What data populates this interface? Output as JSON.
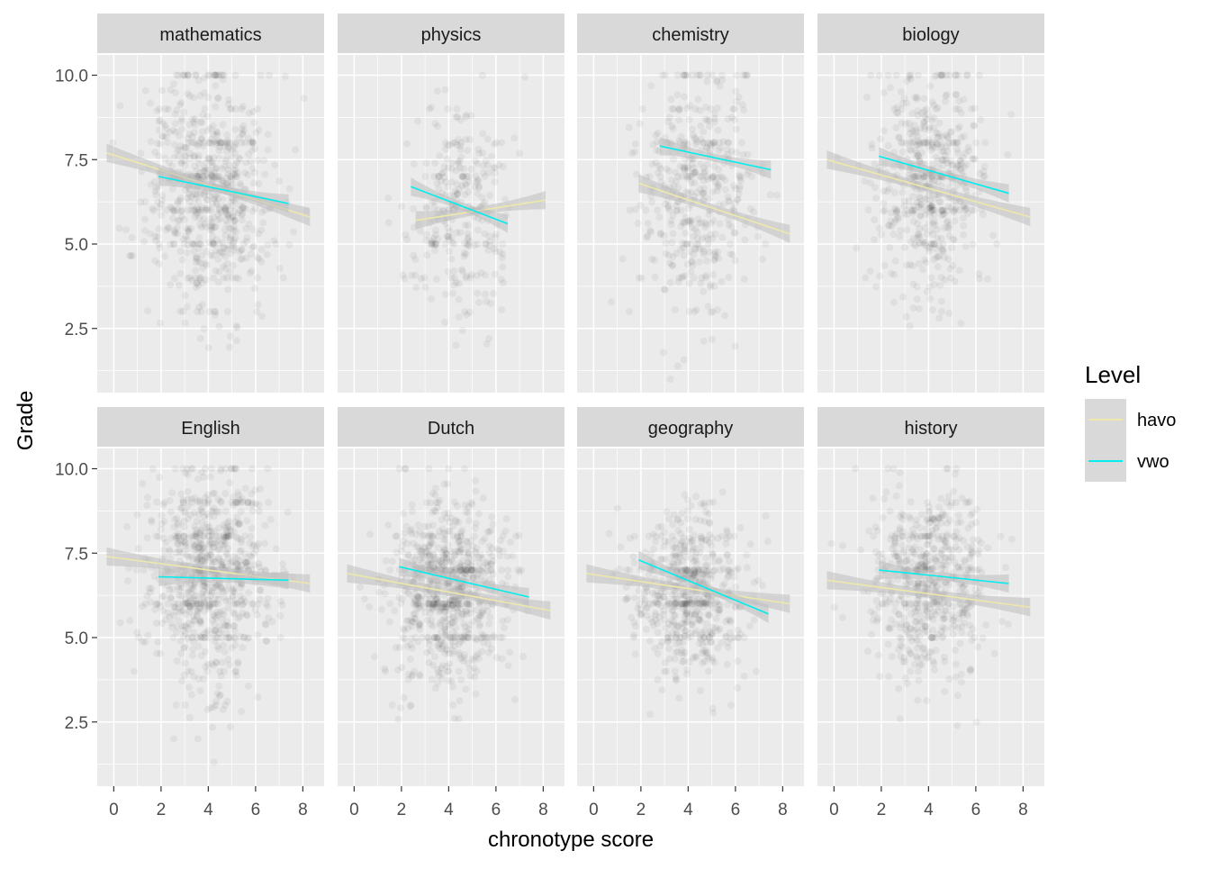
{
  "chart_data": {
    "type": "scatter",
    "facet_layout": "2 rows x 4 columns",
    "xlabel": "chronotype score",
    "ylabel": "Grade",
    "x_ticks": [
      0,
      2,
      4,
      6,
      8
    ],
    "y_ticks": [
      2.5,
      5.0,
      7.5,
      10.0
    ],
    "x_tick_labels": [
      "0",
      "2",
      "4",
      "6",
      "8"
    ],
    "y_tick_labels": [
      "2.5",
      "5.0",
      "7.5",
      "10.0"
    ],
    "xlim": [
      -0.7,
      8.9
    ],
    "ylim": [
      0.6,
      10.6
    ],
    "grid": true,
    "points_alpha": 0.05,
    "legend": {
      "title": "Level",
      "position": "right",
      "entries": [
        {
          "label": "havo",
          "color": "#EEE8AA"
        },
        {
          "label": "vwo",
          "color": "#00EEEE"
        }
      ]
    },
    "colors": {
      "panel_bg": "#EBEBEB",
      "strip_bg": "#D9D9D9",
      "grid": "#FFFFFF",
      "points": "#000000",
      "confidence_band": "#BEBEBE"
    },
    "panels": [
      {
        "subject": "mathematics",
        "scatter_summary": {
          "x_center": 4.0,
          "x_spread": 1.3,
          "y_center": 6.6,
          "y_spread": 1.7,
          "n_points": 700
        },
        "series": [
          {
            "name": "havo",
            "x": [
              -0.3,
              8.3
            ],
            "y": [
              7.7,
              5.8
            ]
          },
          {
            "name": "vwo",
            "x": [
              1.9,
              7.4
            ],
            "y": [
              7.0,
              6.2
            ]
          }
        ]
      },
      {
        "subject": "physics",
        "scatter_summary": {
          "x_center": 4.5,
          "x_spread": 1.1,
          "y_center": 6.1,
          "y_spread": 1.6,
          "n_points": 300
        },
        "series": [
          {
            "name": "havo",
            "x": [
              2.6,
              8.1
            ],
            "y": [
              5.7,
              6.3
            ]
          },
          {
            "name": "vwo",
            "x": [
              2.4,
              6.5
            ],
            "y": [
              6.7,
              5.6
            ]
          }
        ]
      },
      {
        "subject": "chemistry",
        "scatter_summary": {
          "x_center": 4.3,
          "x_spread": 1.2,
          "y_center": 6.6,
          "y_spread": 1.8,
          "n_points": 450
        },
        "series": [
          {
            "name": "havo",
            "x": [
              1.9,
              8.3
            ],
            "y": [
              6.8,
              5.3
            ]
          },
          {
            "name": "vwo",
            "x": [
              2.8,
              7.5
            ],
            "y": [
              7.9,
              7.2
            ]
          }
        ]
      },
      {
        "subject": "biology",
        "scatter_summary": {
          "x_center": 4.0,
          "x_spread": 1.2,
          "y_center": 6.8,
          "y_spread": 1.6,
          "n_points": 550
        },
        "series": [
          {
            "name": "havo",
            "x": [
              -0.3,
              8.3
            ],
            "y": [
              7.5,
              5.8
            ]
          },
          {
            "name": "vwo",
            "x": [
              1.9,
              7.4
            ],
            "y": [
              7.6,
              6.5
            ]
          }
        ]
      },
      {
        "subject": "English",
        "scatter_summary": {
          "x_center": 4.0,
          "x_spread": 1.2,
          "y_center": 6.8,
          "y_spread": 1.6,
          "n_points": 800
        },
        "series": [
          {
            "name": "havo",
            "x": [
              -0.3,
              8.3
            ],
            "y": [
              7.4,
              6.6
            ]
          },
          {
            "name": "vwo",
            "x": [
              1.9,
              7.4
            ],
            "y": [
              6.8,
              6.7
            ]
          }
        ]
      },
      {
        "subject": "Dutch",
        "scatter_summary": {
          "x_center": 4.0,
          "x_spread": 1.2,
          "y_center": 6.4,
          "y_spread": 1.3,
          "n_points": 800
        },
        "series": [
          {
            "name": "havo",
            "x": [
              -0.3,
              8.3
            ],
            "y": [
              6.9,
              5.8
            ]
          },
          {
            "name": "vwo",
            "x": [
              1.9,
              7.4
            ],
            "y": [
              7.1,
              6.2
            ]
          }
        ]
      },
      {
        "subject": "geography",
        "scatter_summary": {
          "x_center": 4.0,
          "x_spread": 1.2,
          "y_center": 6.4,
          "y_spread": 1.2,
          "n_points": 600
        },
        "series": [
          {
            "name": "havo",
            "x": [
              -0.3,
              8.3
            ],
            "y": [
              6.9,
              6.0
            ]
          },
          {
            "name": "vwo",
            "x": [
              1.9,
              7.4
            ],
            "y": [
              7.3,
              5.7
            ]
          }
        ]
      },
      {
        "subject": "history",
        "scatter_summary": {
          "x_center": 4.0,
          "x_spread": 1.2,
          "y_center": 6.5,
          "y_spread": 1.4,
          "n_points": 600
        },
        "series": [
          {
            "name": "havo",
            "x": [
              -0.3,
              8.3
            ],
            "y": [
              6.7,
              5.9
            ]
          },
          {
            "name": "vwo",
            "x": [
              1.9,
              7.4
            ],
            "y": [
              7.0,
              6.6
            ]
          }
        ]
      }
    ]
  }
}
